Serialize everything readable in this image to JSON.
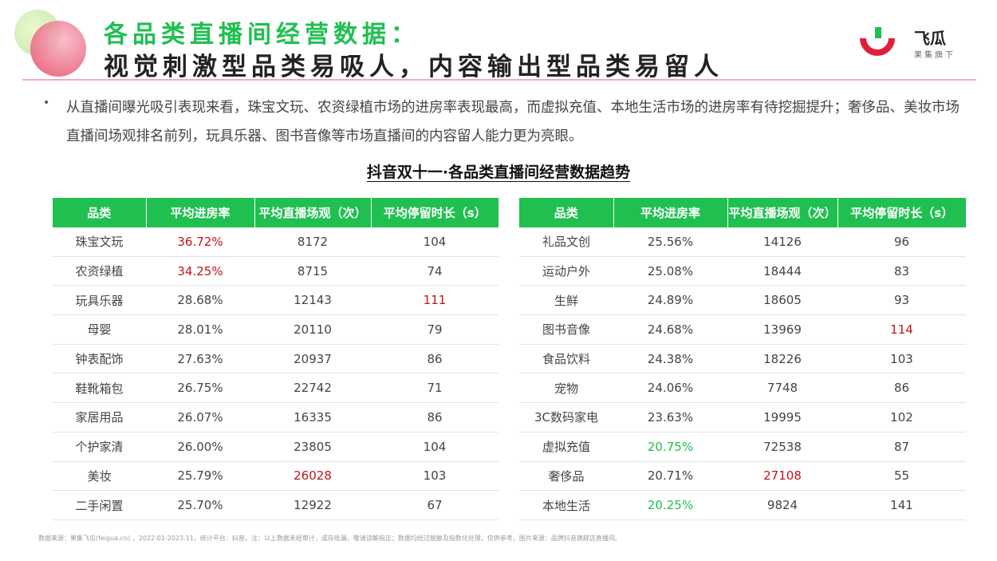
{
  "header": {
    "title_line1": "各品类直播间经营数据：",
    "title_line2": "视觉刺激型品类易吸人，内容输出型品类易留人",
    "brand_name": "飞瓜",
    "brand_sub": "果集旗下"
  },
  "colors": {
    "accent_green": "#1fc04f",
    "highlight_red": "#c4141c",
    "rule_pink": "#f3a9c4"
  },
  "summary": {
    "bullet": "•",
    "text": "从直播间曝光吸引表现来看，珠宝文玩、农资绿植市场的进房率表现最高，而虚拟充值、本地生活市场的进房率有待挖掘提升；奢侈品、美妆市场直播间场观排名前列，玩具乐器、图书音像等市场直播间的内容留人能力更为亮眼。"
  },
  "table_title": "抖音双十一·各品类直播间经营数据趋势",
  "columns": [
    "品类",
    "平均进房率",
    "平均直播场观（次）",
    "平均停留时长（s）"
  ],
  "left_rows": [
    {
      "cat": "珠宝文玩",
      "rate": "36.72%",
      "views": "8172",
      "stay": "104",
      "rate_hl": "red"
    },
    {
      "cat": "农资绿植",
      "rate": "34.25%",
      "views": "8715",
      "stay": "74",
      "rate_hl": "red"
    },
    {
      "cat": "玩具乐器",
      "rate": "28.68%",
      "views": "12143",
      "stay": "111",
      "stay_hl": "red"
    },
    {
      "cat": "母婴",
      "rate": "28.01%",
      "views": "20110",
      "stay": "79"
    },
    {
      "cat": "钟表配饰",
      "rate": "27.63%",
      "views": "20937",
      "stay": "86"
    },
    {
      "cat": "鞋靴箱包",
      "rate": "26.75%",
      "views": "22742",
      "stay": "71"
    },
    {
      "cat": "家居用品",
      "rate": "26.07%",
      "views": "16335",
      "stay": "86"
    },
    {
      "cat": "个护家清",
      "rate": "26.00%",
      "views": "23805",
      "stay": "104"
    },
    {
      "cat": "美妆",
      "rate": "25.79%",
      "views": "26028",
      "stay": "103",
      "views_hl": "red"
    },
    {
      "cat": "二手闲置",
      "rate": "25.70%",
      "views": "12922",
      "stay": "67"
    }
  ],
  "right_rows": [
    {
      "cat": "礼品文创",
      "rate": "25.56%",
      "views": "14126",
      "stay": "96"
    },
    {
      "cat": "运动户外",
      "rate": "25.08%",
      "views": "18444",
      "stay": "83"
    },
    {
      "cat": "生鲜",
      "rate": "24.89%",
      "views": "18605",
      "stay": "93"
    },
    {
      "cat": "图书音像",
      "rate": "24.68%",
      "views": "13969",
      "stay": "114",
      "stay_hl": "red"
    },
    {
      "cat": "食品饮料",
      "rate": "24.38%",
      "views": "18226",
      "stay": "103"
    },
    {
      "cat": "宠物",
      "rate": "24.06%",
      "views": "7748",
      "stay": "86"
    },
    {
      "cat": "3C数码家电",
      "rate": "23.63%",
      "views": "19995",
      "stay": "102"
    },
    {
      "cat": "虚拟充值",
      "rate": "20.75%",
      "views": "72538",
      "stay": "87",
      "rate_hl": "green"
    },
    {
      "cat": "奢侈品",
      "rate": "20.71%",
      "views": "27108",
      "stay": "55",
      "views_hl": "red"
    },
    {
      "cat": "本地生活",
      "rate": "20.25%",
      "views": "9824",
      "stay": "141",
      "rate_hl": "green"
    }
  ],
  "footer": "数据来源：果集飞瓜(feigua.cn) ，2022.01-2023.11，统计平台：抖音，注：以上数据未经审计，或存纰漏，敬请谅解指正；数据均经过脱敏及指数化处理，仅供参考。图片来源：品牌抖音旗舰店直播间。"
}
